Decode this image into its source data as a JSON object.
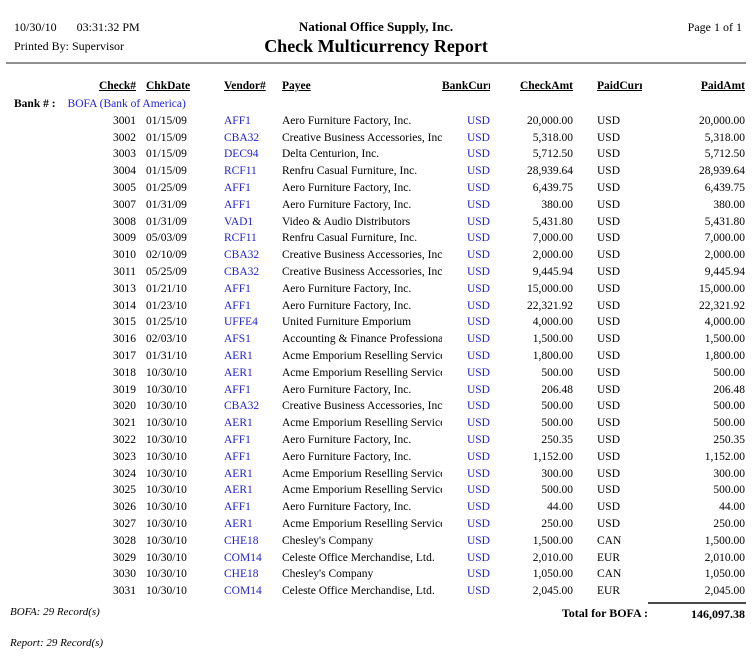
{
  "page": {
    "date": "10/30/10",
    "time": "03:31:32 PM",
    "printed_by": "Printed By: Supervisor",
    "company": "National Office Supply, Inc.",
    "title": "Check Multicurrency Report",
    "page_info": "Page 1 of 1"
  },
  "table": {
    "columns": [
      "Check#",
      "ChkDate",
      "Vendor#",
      "Payee",
      "BankCurr",
      "CheckAmt",
      "PaidCurr",
      "PaidAmt"
    ],
    "bank_label": "Bank # :",
    "bank_value": "BOFA (Bank of America)",
    "rows": [
      [
        "3001",
        "01/15/09",
        "AFF1",
        "Aero Furniture Factory, Inc.",
        "USD",
        "20,000.00",
        "USD",
        "20,000.00"
      ],
      [
        "3002",
        "01/15/09",
        "CBA32",
        "Creative Business Accessories, Inc.",
        "USD",
        "5,318.00",
        "USD",
        "5,318.00"
      ],
      [
        "3003",
        "01/15/09",
        "DEC94",
        "Delta Centurion, Inc.",
        "USD",
        "5,712.50",
        "USD",
        "5,712.50"
      ],
      [
        "3004",
        "01/15/09",
        "RCF11",
        "Renfru Casual Furniture, Inc.",
        "USD",
        "28,939.64",
        "USD",
        "28,939.64"
      ],
      [
        "3005",
        "01/25/09",
        "AFF1",
        "Aero Furniture Factory, Inc.",
        "USD",
        "6,439.75",
        "USD",
        "6,439.75"
      ],
      [
        "3007",
        "01/31/09",
        "AFF1",
        "Aero Furniture Factory, Inc.",
        "USD",
        "380.00",
        "USD",
        "380.00"
      ],
      [
        "3008",
        "01/31/09",
        "VAD1",
        "Video & Audio Distributors",
        "USD",
        "5,431.80",
        "USD",
        "5,431.80"
      ],
      [
        "3009",
        "05/03/09",
        "RCF11",
        "Renfru Casual Furniture, Inc.",
        "USD",
        "7,000.00",
        "USD",
        "7,000.00"
      ],
      [
        "3010",
        "02/10/09",
        "CBA32",
        "Creative Business Accessories, Inc.",
        "USD",
        "2,000.00",
        "USD",
        "2,000.00"
      ],
      [
        "3011",
        "05/25/09",
        "CBA32",
        "Creative Business Accessories, Inc.",
        "USD",
        "9,445.94",
        "USD",
        "9,445.94"
      ],
      [
        "3013",
        "01/21/10",
        "AFF1",
        "Aero Furniture Factory, Inc.",
        "USD",
        "15,000.00",
        "USD",
        "15,000.00"
      ],
      [
        "3014",
        "01/23/10",
        "AFF1",
        "Aero Furniture Factory, Inc.",
        "USD",
        "22,321.92",
        "USD",
        "22,321.92"
      ],
      [
        "3015",
        "01/25/10",
        "UFFE4",
        "United Furniture Emporium",
        "USD",
        "4,000.00",
        "USD",
        "4,000.00"
      ],
      [
        "3016",
        "02/03/10",
        "AFS1",
        "Accounting & Finance Professionals",
        "USD",
        "1,500.00",
        "USD",
        "1,500.00"
      ],
      [
        "3017",
        "01/31/10",
        "AER1",
        "Acme Emporium Reselling Services",
        "USD",
        "1,800.00",
        "USD",
        "1,800.00"
      ],
      [
        "3018",
        "10/30/10",
        "AER1",
        "Acme Emporium Reselling Services",
        "USD",
        "500.00",
        "USD",
        "500.00"
      ],
      [
        "3019",
        "10/30/10",
        "AFF1",
        "Aero Furniture Factory, Inc.",
        "USD",
        "206.48",
        "USD",
        "206.48"
      ],
      [
        "3020",
        "10/30/10",
        "CBA32",
        "Creative Business Accessories, Inc.",
        "USD",
        "500.00",
        "USD",
        "500.00"
      ],
      [
        "3021",
        "10/30/10",
        "AER1",
        "Acme Emporium Reselling Services",
        "USD",
        "500.00",
        "USD",
        "500.00"
      ],
      [
        "3022",
        "10/30/10",
        "AFF1",
        "Aero Furniture Factory, Inc.",
        "USD",
        "250.35",
        "USD",
        "250.35"
      ],
      [
        "3023",
        "10/30/10",
        "AFF1",
        "Aero Furniture Factory, Inc.",
        "USD",
        "1,152.00",
        "USD",
        "1,152.00"
      ],
      [
        "3024",
        "10/30/10",
        "AER1",
        "Acme Emporium Reselling Services",
        "USD",
        "300.00",
        "USD",
        "300.00"
      ],
      [
        "3025",
        "10/30/10",
        "AER1",
        "Acme Emporium Reselling Services",
        "USD",
        "500.00",
        "USD",
        "500.00"
      ],
      [
        "3026",
        "10/30/10",
        "AFF1",
        "Aero Furniture Factory, Inc.",
        "USD",
        "44.00",
        "USD",
        "44.00"
      ],
      [
        "3027",
        "10/30/10",
        "AER1",
        "Acme Emporium Reselling Services",
        "USD",
        "250.00",
        "USD",
        "250.00"
      ],
      [
        "3028",
        "10/30/10",
        "CHE18",
        "Chesley's Company",
        "USD",
        "1,500.00",
        "CAN",
        "1,500.00"
      ],
      [
        "3029",
        "10/30/10",
        "COM14",
        "Celeste Office Merchandise, Ltd.",
        "USD",
        "2,010.00",
        "EUR",
        "2,010.00"
      ],
      [
        "3030",
        "10/30/10",
        "CHE18",
        "Chesley's Company",
        "USD",
        "1,050.00",
        "CAN",
        "1,050.00"
      ],
      [
        "3031",
        "10/30/10",
        "COM14",
        "Celeste Office Merchandise, Ltd.",
        "USD",
        "2,045.00",
        "EUR",
        "2,045.00"
      ]
    ]
  },
  "footer": {
    "bank_count": "BOFA: 29 Record(s)",
    "total_label": "Total for BOFA :",
    "total_amount": "146,097.38",
    "report_count": "Report: 29 Record(s)"
  },
  "colors": {
    "link_blue": "#2222cc",
    "rule_gray": "#909090",
    "text": "#000000"
  }
}
